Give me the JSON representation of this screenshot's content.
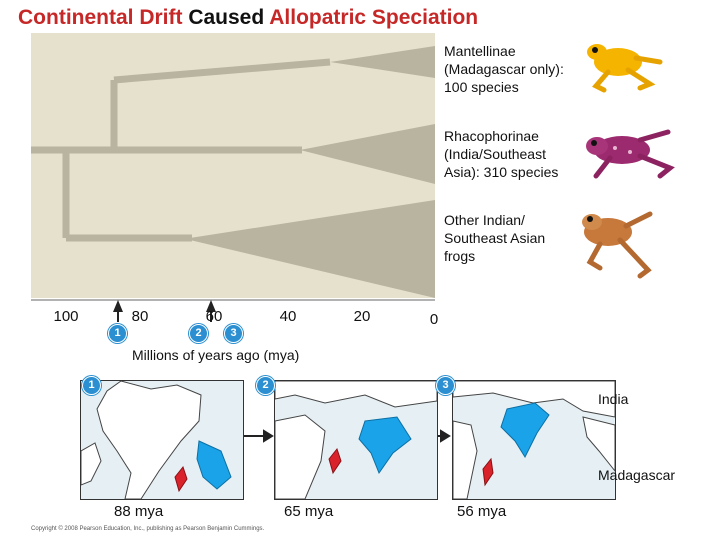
{
  "title": {
    "part1": "Continental Drift",
    "part2": " Caused ",
    "part3": "Allopatric Speciation"
  },
  "clades": [
    {
      "line1": "Mantellinae",
      "line2": "(Madagascar only):",
      "line3": "100 species"
    },
    {
      "line1": "Rhacophorinae",
      "line2": "(India/Southeast",
      "line3": "Asia): 310 species"
    },
    {
      "line1": "Other Indian/",
      "line2": "Southeast Asian",
      "line3": "frogs"
    }
  ],
  "axis": {
    "ticks": [
      "100",
      "80",
      "60",
      "40",
      "20",
      "0"
    ],
    "title": "Millions of years ago (mya)"
  },
  "events": [
    "1",
    "2",
    "3"
  ],
  "maps": [
    {
      "badge": "1",
      "label": "88 mya"
    },
    {
      "badge": "2",
      "label": "65 mya"
    },
    {
      "badge": "3",
      "label": "56 mya"
    }
  ],
  "callouts": {
    "india": "India",
    "madagascar": "Madagascar"
  },
  "copyright": "Copyright © 2008 Pearson Education, Inc., publishing as Pearson Benjamin Cummings.",
  "colors": {
    "title_red": "#c62828",
    "panel": "#e5e1cc",
    "branch": "#b8b49f",
    "badge": "#2b8fd1",
    "land": "#1aa3e8",
    "continent": "#ffffff"
  }
}
